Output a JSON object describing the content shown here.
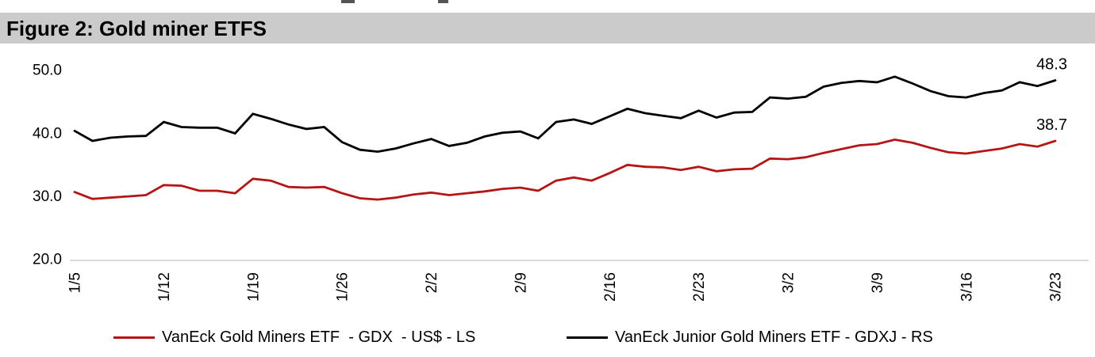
{
  "figure": {
    "title": "Figure 2: Gold miner ETFS"
  },
  "chart_data": {
    "type": "line",
    "title": "Figure 2: Gold miner ETFS",
    "x": [
      "1/5",
      "1/6",
      "1/7",
      "1/10",
      "1/11",
      "1/12",
      "1/13",
      "1/14",
      "1/17",
      "1/18",
      "1/19",
      "1/20",
      "1/21",
      "1/24",
      "1/25",
      "1/26",
      "1/27",
      "1/28",
      "1/31",
      "2/1",
      "2/2",
      "2/3",
      "2/4",
      "2/7",
      "2/8",
      "2/9",
      "2/10",
      "2/11",
      "2/14",
      "2/15",
      "2/16",
      "2/17",
      "2/18",
      "2/21",
      "2/22",
      "2/23",
      "2/24",
      "2/25",
      "2/28",
      "3/1",
      "3/2",
      "3/3",
      "3/4",
      "3/7",
      "3/8",
      "3/9",
      "3/10",
      "3/11",
      "3/14",
      "3/15",
      "3/16",
      "3/17",
      "3/18",
      "3/21",
      "3/22",
      "3/23"
    ],
    "x_tick_labels": [
      "1/5",
      "1/12",
      "1/19",
      "1/26",
      "2/2",
      "2/9",
      "2/16",
      "2/23",
      "3/2",
      "3/9",
      "3/16",
      "3/23"
    ],
    "x_tick_every": 5,
    "ylim": [
      20,
      50
    ],
    "yticks": [
      50,
      40,
      30,
      20
    ],
    "grid": false,
    "legend_position": "bottom",
    "series": [
      {
        "name": "VanEck Gold Miners ETF  - GDX  - US$ - LS",
        "short": "gdx",
        "color": "#b51514",
        "axis": "left",
        "end_label": "38.7",
        "values": [
          30.6,
          29.5,
          29.7,
          29.9,
          30.1,
          31.7,
          31.6,
          30.8,
          30.8,
          30.4,
          32.7,
          32.4,
          31.4,
          31.3,
          31.4,
          30.4,
          29.6,
          29.4,
          29.7,
          30.2,
          30.5,
          30.1,
          30.4,
          30.7,
          31.1,
          31.3,
          30.8,
          32.4,
          32.9,
          32.4,
          33.6,
          34.9,
          34.6,
          34.5,
          34.1,
          34.6,
          33.9,
          34.2,
          34.3,
          35.9,
          35.8,
          36.1,
          36.8,
          37.4,
          38.0,
          38.2,
          38.9,
          38.4,
          37.6,
          36.9,
          36.7,
          37.1,
          37.5,
          38.2,
          37.8,
          38.7
        ]
      },
      {
        "name": "VanEck Junior Gold Miners ETF - GDXJ - RS",
        "short": "gdxj",
        "color": "#000000",
        "axis": "right",
        "end_label": "48.3",
        "values": [
          40.3,
          38.7,
          39.2,
          39.4,
          39.5,
          41.7,
          40.9,
          40.8,
          40.8,
          39.9,
          43.0,
          42.2,
          41.3,
          40.6,
          40.9,
          38.5,
          37.3,
          37.0,
          37.5,
          38.3,
          39.0,
          37.9,
          38.4,
          39.4,
          40.0,
          40.2,
          39.1,
          41.7,
          42.1,
          41.4,
          42.6,
          43.8,
          43.1,
          42.7,
          42.3,
          43.5,
          42.4,
          43.2,
          43.3,
          45.6,
          45.4,
          45.7,
          47.3,
          47.9,
          48.2,
          48.0,
          48.9,
          47.8,
          46.6,
          45.8,
          45.6,
          46.3,
          46.7,
          48.0,
          47.4,
          48.3
        ]
      }
    ]
  }
}
